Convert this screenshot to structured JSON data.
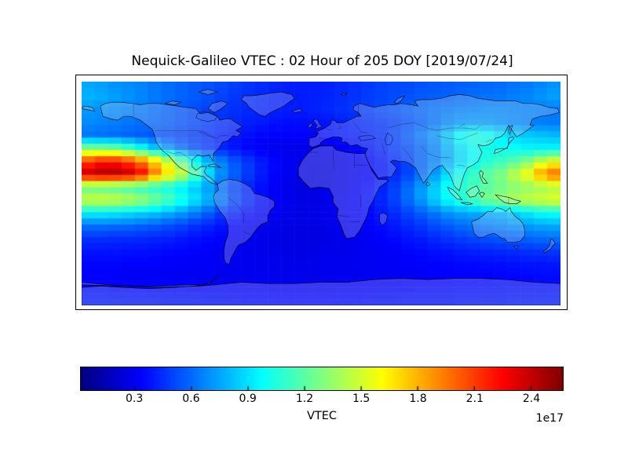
{
  "figure": {
    "title": "Nequick-Galileo VTEC : 02 Hour of 205 DOY [2019/07/24]",
    "background_color": "#ffffff",
    "frame_color": "#000000",
    "land_tint": "rgba(225,225,225,0.25)",
    "coastline_color": "#000000"
  },
  "chart_data": {
    "type": "heatmap",
    "title": "Nequick-Galileo VTEC : 02 Hour of 205 DOY [2019/07/24]",
    "xlabel": "",
    "ylabel": "",
    "projection": "equirectangular-world-map",
    "lon_range": [
      -180,
      180
    ],
    "lat_range": [
      -90,
      90
    ],
    "colormap": "jet",
    "grid_lines": false,
    "colorbar": {
      "orientation": "horizontal",
      "label": "VTEC",
      "scale_label": "1e17",
      "ticks": [
        0.3,
        0.6,
        0.9,
        1.2,
        1.5,
        1.8,
        2.1,
        2.4
      ],
      "vmin": 0.013,
      "vmax": 2.57
    },
    "grid": {
      "units": "1e17",
      "lon_centers_start": -175,
      "lon_step": 10,
      "lat_centers_start": 85,
      "lat_step": -10,
      "n_lon": 36,
      "n_lat": 18,
      "rows": [
        [
          0.75,
          0.73,
          0.7,
          0.68,
          0.66,
          0.63,
          0.6,
          0.58,
          0.56,
          0.54,
          0.52,
          0.49,
          0.46,
          0.44,
          0.42,
          0.41,
          0.4,
          0.4,
          0.41,
          0.43,
          0.45,
          0.47,
          0.49,
          0.51,
          0.52,
          0.54,
          0.55,
          0.56,
          0.57,
          0.58,
          0.59,
          0.6,
          0.62,
          0.64,
          0.67,
          0.7
        ],
        [
          0.78,
          0.76,
          0.73,
          0.7,
          0.67,
          0.64,
          0.61,
          0.58,
          0.56,
          0.53,
          0.5,
          0.47,
          0.45,
          0.43,
          0.41,
          0.4,
          0.4,
          0.41,
          0.42,
          0.44,
          0.46,
          0.48,
          0.5,
          0.52,
          0.54,
          0.56,
          0.57,
          0.58,
          0.6,
          0.61,
          0.62,
          0.63,
          0.65,
          0.67,
          0.7,
          0.73
        ],
        [
          0.72,
          0.7,
          0.68,
          0.66,
          0.64,
          0.61,
          0.58,
          0.55,
          0.52,
          0.5,
          0.47,
          0.45,
          0.43,
          0.42,
          0.41,
          0.4,
          0.4,
          0.41,
          0.43,
          0.45,
          0.47,
          0.49,
          0.52,
          0.54,
          0.57,
          0.6,
          0.62,
          0.64,
          0.66,
          0.67,
          0.68,
          0.68,
          0.67,
          0.66,
          0.65,
          0.64
        ],
        [
          0.68,
          0.66,
          0.65,
          0.63,
          0.61,
          0.59,
          0.57,
          0.54,
          0.51,
          0.48,
          0.45,
          0.43,
          0.41,
          0.39,
          0.37,
          0.36,
          0.36,
          0.37,
          0.38,
          0.4,
          0.42,
          0.44,
          0.46,
          0.49,
          0.53,
          0.57,
          0.62,
          0.68,
          0.72,
          0.73,
          0.72,
          0.7,
          0.68,
          0.66,
          0.65,
          0.64
        ],
        [
          0.62,
          0.61,
          0.6,
          0.58,
          0.56,
          0.54,
          0.52,
          0.5,
          0.47,
          0.44,
          0.41,
          0.38,
          0.36,
          0.34,
          0.33,
          0.33,
          0.33,
          0.34,
          0.36,
          0.38,
          0.4,
          0.42,
          0.44,
          0.5,
          0.56,
          0.64,
          0.72,
          0.85,
          1.0,
          1.06,
          1.02,
          0.94,
          0.87,
          0.84,
          0.82,
          0.8
        ],
        [
          1.3,
          1.28,
          1.25,
          1.15,
          1.0,
          0.85,
          0.72,
          0.6,
          0.52,
          0.47,
          0.42,
          0.38,
          0.34,
          0.31,
          0.29,
          0.28,
          0.28,
          0.28,
          0.29,
          0.31,
          0.34,
          0.38,
          0.42,
          0.47,
          0.52,
          0.58,
          0.66,
          0.78,
          0.9,
          0.98,
          1.02,
          1.0,
          0.98,
          0.96,
          0.95,
          0.96
        ],
        [
          2.1,
          2.2,
          2.2,
          2.1,
          1.95,
          1.72,
          1.48,
          1.25,
          1.02,
          0.82,
          0.66,
          0.55,
          0.47,
          0.4,
          0.35,
          0.31,
          0.28,
          0.27,
          0.27,
          0.29,
          0.31,
          0.34,
          0.38,
          0.44,
          0.5,
          0.58,
          0.66,
          0.76,
          0.88,
          0.98,
          1.06,
          1.12,
          1.2,
          1.3,
          1.45,
          1.55
        ],
        [
          2.4,
          2.45,
          2.45,
          2.4,
          2.25,
          1.95,
          1.7,
          1.5,
          1.2,
          0.9,
          0.7,
          0.58,
          0.48,
          0.4,
          0.34,
          0.3,
          0.27,
          0.26,
          0.26,
          0.28,
          0.3,
          0.33,
          0.37,
          0.43,
          0.5,
          0.6,
          0.72,
          0.88,
          1.02,
          1.12,
          1.22,
          1.3,
          1.45,
          1.6,
          1.85,
          2.0
        ],
        [
          1.2,
          1.18,
          1.15,
          1.12,
          1.08,
          1.04,
          1.0,
          0.92,
          0.83,
          0.73,
          0.6,
          0.5,
          0.42,
          0.36,
          0.31,
          0.28,
          0.26,
          0.26,
          0.27,
          0.29,
          0.32,
          0.36,
          0.42,
          0.5,
          0.6,
          0.72,
          0.85,
          1.0,
          1.08,
          1.14,
          1.2,
          1.25,
          1.3,
          1.33,
          1.36,
          1.4
        ],
        [
          1.5,
          1.52,
          1.5,
          1.45,
          1.38,
          1.28,
          1.18,
          1.05,
          0.92,
          0.8,
          0.66,
          0.53,
          0.44,
          0.37,
          0.32,
          0.29,
          0.27,
          0.27,
          0.28,
          0.3,
          0.33,
          0.37,
          0.43,
          0.5,
          0.6,
          0.72,
          0.85,
          0.98,
          1.08,
          1.18,
          1.28,
          1.35,
          1.42,
          1.48,
          1.52,
          1.55
        ],
        [
          0.95,
          0.95,
          0.93,
          0.9,
          0.87,
          0.83,
          0.78,
          0.72,
          0.65,
          0.57,
          0.48,
          0.42,
          0.37,
          0.33,
          0.3,
          0.28,
          0.27,
          0.27,
          0.28,
          0.3,
          0.32,
          0.35,
          0.39,
          0.44,
          0.5,
          0.56,
          0.63,
          0.7,
          0.74,
          0.76,
          0.78,
          0.8,
          0.85,
          0.92,
          0.98,
          1.0
        ],
        [
          0.62,
          0.62,
          0.61,
          0.6,
          0.58,
          0.56,
          0.53,
          0.5,
          0.46,
          0.42,
          0.38,
          0.34,
          0.31,
          0.29,
          0.28,
          0.27,
          0.27,
          0.27,
          0.28,
          0.29,
          0.31,
          0.33,
          0.36,
          0.39,
          0.43,
          0.47,
          0.52,
          0.56,
          0.6,
          0.63,
          0.65,
          0.67,
          0.7,
          0.72,
          0.75,
          0.76
        ],
        [
          0.45,
          0.45,
          0.44,
          0.44,
          0.43,
          0.42,
          0.41,
          0.39,
          0.37,
          0.35,
          0.33,
          0.31,
          0.29,
          0.28,
          0.27,
          0.26,
          0.26,
          0.26,
          0.27,
          0.28,
          0.29,
          0.31,
          0.33,
          0.35,
          0.38,
          0.4,
          0.43,
          0.46,
          0.49,
          0.51,
          0.53,
          0.55,
          0.57,
          0.58,
          0.6,
          0.61
        ],
        [
          0.38,
          0.38,
          0.38,
          0.37,
          0.37,
          0.36,
          0.35,
          0.34,
          0.33,
          0.32,
          0.31,
          0.3,
          0.29,
          0.28,
          0.28,
          0.27,
          0.27,
          0.27,
          0.28,
          0.28,
          0.29,
          0.3,
          0.31,
          0.32,
          0.34,
          0.35,
          0.37,
          0.38,
          0.4,
          0.41,
          0.42,
          0.43,
          0.44,
          0.45,
          0.46,
          0.47
        ],
        [
          0.34,
          0.34,
          0.34,
          0.33,
          0.33,
          0.33,
          0.32,
          0.32,
          0.31,
          0.31,
          0.3,
          0.3,
          0.29,
          0.29,
          0.29,
          0.28,
          0.28,
          0.28,
          0.29,
          0.29,
          0.3,
          0.3,
          0.31,
          0.31,
          0.32,
          0.33,
          0.33,
          0.34,
          0.35,
          0.35,
          0.36,
          0.36,
          0.37,
          0.38,
          0.38,
          0.39
        ],
        [
          0.32,
          0.32,
          0.32,
          0.31,
          0.31,
          0.31,
          0.31,
          0.3,
          0.3,
          0.3,
          0.29,
          0.29,
          0.29,
          0.29,
          0.28,
          0.28,
          0.28,
          0.28,
          0.29,
          0.29,
          0.29,
          0.3,
          0.3,
          0.3,
          0.31,
          0.31,
          0.32,
          0.32,
          0.33,
          0.33,
          0.33,
          0.34,
          0.34,
          0.34,
          0.35,
          0.35
        ],
        [
          0.37,
          0.37,
          0.36,
          0.36,
          0.36,
          0.35,
          0.35,
          0.35,
          0.34,
          0.34,
          0.34,
          0.33,
          0.33,
          0.33,
          0.32,
          0.32,
          0.32,
          0.32,
          0.32,
          0.33,
          0.33,
          0.33,
          0.34,
          0.34,
          0.34,
          0.35,
          0.35,
          0.35,
          0.36,
          0.36,
          0.36,
          0.36,
          0.37,
          0.37,
          0.37,
          0.38
        ],
        [
          0.4,
          0.4,
          0.4,
          0.39,
          0.39,
          0.39,
          0.38,
          0.38,
          0.38,
          0.37,
          0.37,
          0.37,
          0.36,
          0.36,
          0.36,
          0.36,
          0.36,
          0.36,
          0.36,
          0.36,
          0.36,
          0.37,
          0.37,
          0.37,
          0.38,
          0.38,
          0.38,
          0.38,
          0.39,
          0.39,
          0.39,
          0.39,
          0.4,
          0.4,
          0.4,
          0.4
        ]
      ]
    }
  }
}
